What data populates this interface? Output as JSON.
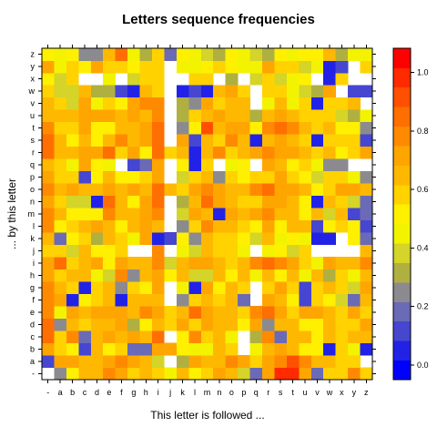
{
  "chart_data": {
    "type": "heatmap",
    "title": "Letters sequence frequencies",
    "xlabel": "This letter is followed ...",
    "ylabel": "... by this letter",
    "x_categories": [
      "-",
      "a",
      "b",
      "c",
      "d",
      "e",
      "f",
      "g",
      "h",
      "i",
      "j",
      "k",
      "l",
      "m",
      "n",
      "o",
      "p",
      "q",
      "r",
      "s",
      "t",
      "u",
      "v",
      "w",
      "x",
      "y",
      "z"
    ],
    "y_categories": [
      "-",
      "a",
      "b",
      "c",
      "d",
      "e",
      "f",
      "g",
      "h",
      "i",
      "j",
      "k",
      "l",
      "m",
      "n",
      "o",
      "p",
      "q",
      "r",
      "s",
      "t",
      "u",
      "v",
      "w",
      "x",
      "y",
      "z"
    ],
    "colorkey": {
      "ticks": [
        0.0,
        0.2,
        0.4,
        0.6,
        0.8,
        1.0
      ],
      "tick_labels": [
        "0.0",
        "0.2",
        "0.4",
        "0.6",
        "0.8",
        "1.0"
      ],
      "breaks": [
        -0.05,
        0.016,
        0.083,
        0.15,
        0.216,
        0.283,
        0.35,
        0.416,
        0.483,
        0.55,
        0.616,
        0.683,
        0.75,
        0.816,
        0.883,
        0.95,
        1.016,
        1.083
      ],
      "colors": [
        "#0000FF",
        "#2222E6",
        "#4646D0",
        "#6A6AB7",
        "#8B8B8F",
        "#B0B040",
        "#D4D429",
        "#F3F300",
        "#FFF000",
        "#FFD200",
        "#FFB800",
        "#FFA500",
        "#FF8A00",
        "#FF6E00",
        "#FF4F00",
        "#FF2A00",
        "#FF0000"
      ]
    },
    "values": [
      [
        null,
        0.24,
        0.5,
        0.66,
        0.66,
        0.76,
        0.74,
        0.58,
        0.68,
        0.6,
        0.48,
        0.66,
        0.53,
        0.6,
        0.7,
        0.64,
        0.4,
        0.16,
        0.7,
        1.0,
        0.98,
        0.7,
        0.18,
        0.58,
        0.6,
        0.76,
        0.56
      ],
      [
        0.14,
        0.7,
        0.7,
        0.65,
        0.62,
        0.7,
        0.8,
        0.7,
        0.62,
        0.38,
        null,
        0.32,
        0.7,
        0.66,
        0.68,
        0.78,
        0.7,
        0.56,
        0.7,
        0.76,
        0.9,
        0.78,
        0.66,
        0.64,
        0.58,
        0.6,
        null
      ],
      [
        0.72,
        0.58,
        0.54,
        0.1,
        0.66,
        0.5,
        0.58,
        0.18,
        0.18,
        0.7,
        0.74,
        0.5,
        0.46,
        0.44,
        0.64,
        0.6,
        null,
        0.42,
        0.66,
        0.72,
        0.66,
        0.52,
        0.54,
        0.06,
        0.56,
        0.48,
        0.02
      ],
      [
        0.86,
        0.6,
        0.78,
        0.2,
        0.62,
        0.7,
        0.66,
        0.72,
        0.66,
        0.84,
        null,
        0.54,
        0.78,
        0.6,
        0.62,
        0.46,
        null,
        0.3,
        0.78,
        0.2,
        0.66,
        0.62,
        0.52,
        0.66,
        0.58,
        0.62,
        0.68
      ],
      [
        0.82,
        0.28,
        0.62,
        0.6,
        0.66,
        0.64,
        0.74,
        0.34,
        0.5,
        0.64,
        0.6,
        0.7,
        0.58,
        0.72,
        0.64,
        0.66,
        0.5,
        0.74,
        0.26,
        0.68,
        0.68,
        0.5,
        0.54,
        0.66,
        0.6,
        0.6,
        0.72
      ],
      [
        0.76,
        0.48,
        0.7,
        0.68,
        0.72,
        0.7,
        0.74,
        0.64,
        0.78,
        0.7,
        0.6,
        0.62,
        0.84,
        0.7,
        0.66,
        0.68,
        0.6,
        0.8,
        0.86,
        0.72,
        0.6,
        0.7,
        0.7,
        0.64,
        0.58,
        0.74,
        0.6
      ],
      [
        0.8,
        0.7,
        0.08,
        0.5,
        0.6,
        0.66,
        0.06,
        0.66,
        0.66,
        0.66,
        null,
        0.26,
        0.6,
        0.68,
        0.58,
        0.66,
        0.2,
        null,
        0.7,
        0.66,
        0.52,
        0.14,
        0.56,
        0.5,
        0.36,
        0.18,
        0.68
      ],
      [
        0.78,
        0.66,
        0.56,
        0.06,
        0.58,
        0.68,
        0.26,
        0.56,
        0.5,
        0.72,
        null,
        0.42,
        0.08,
        0.7,
        0.5,
        0.66,
        0.6,
        null,
        0.6,
        0.72,
        0.58,
        0.12,
        0.58,
        0.66,
        0.6,
        0.38,
        0.7
      ],
      [
        0.72,
        0.56,
        0.62,
        0.68,
        0.48,
        0.36,
        0.78,
        0.24,
        0.66,
        0.74,
        0.54,
        0.64,
        0.36,
        0.38,
        0.64,
        0.54,
        0.66,
        0.42,
        0.66,
        0.5,
        0.62,
        0.42,
        0.66,
        0.3,
        0.6,
        0.44,
        0.64
      ],
      [
        0.74,
        0.84,
        0.6,
        0.64,
        0.72,
        0.52,
        0.72,
        0.66,
        0.68,
        0.78,
        0.4,
        0.66,
        0.72,
        0.7,
        0.66,
        0.6,
        0.62,
        0.8,
        0.86,
        0.8,
        0.74,
        0.56,
        0.46,
        0.7,
        0.62,
        0.68,
        0.78
      ],
      [
        0.58,
        0.56,
        0.36,
        0.66,
        0.5,
        0.5,
        0.6,
        null,
        null,
        0.78,
        null,
        0.46,
        0.38,
        0.64,
        0.58,
        0.6,
        0.42,
        null,
        0.42,
        0.5,
        0.4,
        0.56,
        null,
        null,
        null,
        null,
        0.64
      ],
      [
        0.66,
        0.16,
        0.54,
        0.6,
        0.3,
        0.62,
        0.58,
        0.48,
        0.74,
        0.02,
        0.1,
        0.5,
        0.26,
        0.66,
        0.56,
        0.6,
        0.54,
        0.38,
        0.64,
        0.42,
        0.5,
        0.46,
        0.04,
        0.06,
        null,
        0.5,
        0.16
      ],
      [
        0.78,
        0.54,
        0.6,
        0.66,
        0.72,
        0.64,
        0.52,
        0.68,
        0.74,
        0.64,
        null,
        0.28,
        0.6,
        0.78,
        0.66,
        0.62,
        0.58,
        0.5,
        0.7,
        0.52,
        0.68,
        0.64,
        0.1,
        0.52,
        0.6,
        0.54,
        0.14
      ],
      [
        0.76,
        0.62,
        0.5,
        0.54,
        0.54,
        0.8,
        0.68,
        0.62,
        0.7,
        0.78,
        null,
        0.38,
        0.72,
        0.68,
        0.06,
        0.7,
        0.64,
        0.7,
        0.76,
        0.68,
        0.66,
        0.52,
        0.66,
        0.36,
        0.62,
        0.1,
        0.18
      ],
      [
        0.7,
        0.58,
        0.36,
        0.4,
        0.08,
        0.84,
        0.64,
        0.52,
        0.7,
        0.82,
        null,
        0.3,
        0.66,
        0.84,
        0.7,
        0.64,
        0.58,
        0.56,
        0.74,
        0.7,
        0.66,
        0.54,
        0.06,
        0.66,
        0.56,
        0.38,
        0.2
      ],
      [
        0.78,
        0.64,
        0.74,
        0.64,
        0.68,
        0.72,
        0.68,
        0.74,
        0.62,
        0.82,
        0.66,
        0.6,
        0.72,
        0.78,
        0.74,
        0.66,
        0.64,
        0.8,
        0.82,
        0.72,
        0.72,
        0.66,
        0.5,
        0.58,
        0.7,
        0.7,
        0.66
      ],
      [
        0.72,
        0.56,
        0.6,
        0.1,
        0.5,
        0.66,
        0.5,
        0.52,
        0.56,
        0.72,
        null,
        0.4,
        0.56,
        0.66,
        0.28,
        0.56,
        0.52,
        0.6,
        0.58,
        0.7,
        0.58,
        0.54,
        0.38,
        0.56,
        0.6,
        0.48,
        0.24
      ],
      [
        0.64,
        0.6,
        0.48,
        0.72,
        0.52,
        0.46,
        null,
        0.12,
        0.2,
        0.7,
        null,
        0.5,
        0.06,
        0.58,
        null,
        0.44,
        0.5,
        null,
        0.7,
        0.68,
        0.5,
        0.58,
        0.42,
        0.28,
        0.26,
        null,
        null
      ],
      [
        0.82,
        0.66,
        0.66,
        0.74,
        0.7,
        0.82,
        0.6,
        0.7,
        0.52,
        0.86,
        0.56,
        0.64,
        0.08,
        0.66,
        0.76,
        0.6,
        0.64,
        0.72,
        0.76,
        0.7,
        0.74,
        0.66,
        0.58,
        0.64,
        0.5,
        0.58,
        0.72
      ],
      [
        0.82,
        0.64,
        0.5,
        0.66,
        0.52,
        0.62,
        0.76,
        0.62,
        0.7,
        0.84,
        null,
        0.7,
        0.12,
        0.62,
        0.56,
        0.8,
        0.66,
        0.02,
        0.64,
        0.7,
        0.62,
        0.58,
        0.04,
        0.58,
        0.6,
        0.6,
        0.12
      ],
      [
        0.8,
        0.6,
        0.58,
        0.72,
        0.5,
        0.54,
        0.64,
        0.66,
        0.74,
        0.86,
        null,
        0.26,
        0.54,
        0.9,
        0.62,
        0.74,
        0.72,
        0.5,
        0.8,
        0.82,
        0.76,
        0.64,
        0.6,
        0.66,
        0.54,
        0.54,
        0.22
      ],
      [
        0.64,
        0.64,
        0.62,
        0.72,
        0.72,
        0.7,
        0.62,
        0.7,
        0.64,
        0.76,
        null,
        0.3,
        0.6,
        0.68,
        0.74,
        0.66,
        0.62,
        0.34,
        0.62,
        0.72,
        0.66,
        0.6,
        0.56,
        0.6,
        0.4,
        0.3,
        0.44
      ],
      [
        0.68,
        0.58,
        0.4,
        0.72,
        0.42,
        0.6,
        0.52,
        0.7,
        0.76,
        0.8,
        null,
        0.3,
        0.28,
        0.74,
        0.58,
        0.66,
        0.68,
        null,
        0.48,
        0.64,
        0.46,
        0.6,
        0.02,
        0.6,
        0.6,
        0.64,
        null
      ],
      [
        0.6,
        0.4,
        0.36,
        0.66,
        0.32,
        0.32,
        0.1,
        0.08,
        0.66,
        0.6,
        null,
        0.04,
        0.12,
        0.08,
        0.68,
        0.7,
        0.56,
        null,
        0.56,
        0.6,
        0.44,
        0.38,
        0.3,
        0.7,
        null,
        0.1,
        0.12
      ],
      [
        0.5,
        0.4,
        0.6,
        null,
        null,
        0.48,
        null,
        0.4,
        0.6,
        0.56,
        null,
        null,
        0.6,
        0.58,
        null,
        0.3,
        null,
        0.38,
        0.6,
        0.38,
        0.46,
        0.5,
        null,
        0.06,
        0.56,
        null,
        null
      ],
      [
        0.72,
        0.48,
        0.58,
        0.54,
        0.72,
        0.6,
        0.58,
        0.5,
        0.6,
        0.6,
        null,
        0.44,
        0.46,
        0.54,
        0.58,
        0.52,
        0.48,
        0.42,
        0.72,
        0.56,
        0.6,
        0.38,
        0.44,
        0.06,
        0.1,
        null,
        0.56
      ],
      [
        0.52,
        0.46,
        0.5,
        0.28,
        0.28,
        0.62,
        0.82,
        0.48,
        0.32,
        0.56,
        0.2,
        0.54,
        0.42,
        0.38,
        0.3,
        0.5,
        0.46,
        0.36,
        0.3,
        0.54,
        0.48,
        0.5,
        0.5,
        0.66,
        0.3,
        0.48,
        0.44
      ]
    ]
  }
}
